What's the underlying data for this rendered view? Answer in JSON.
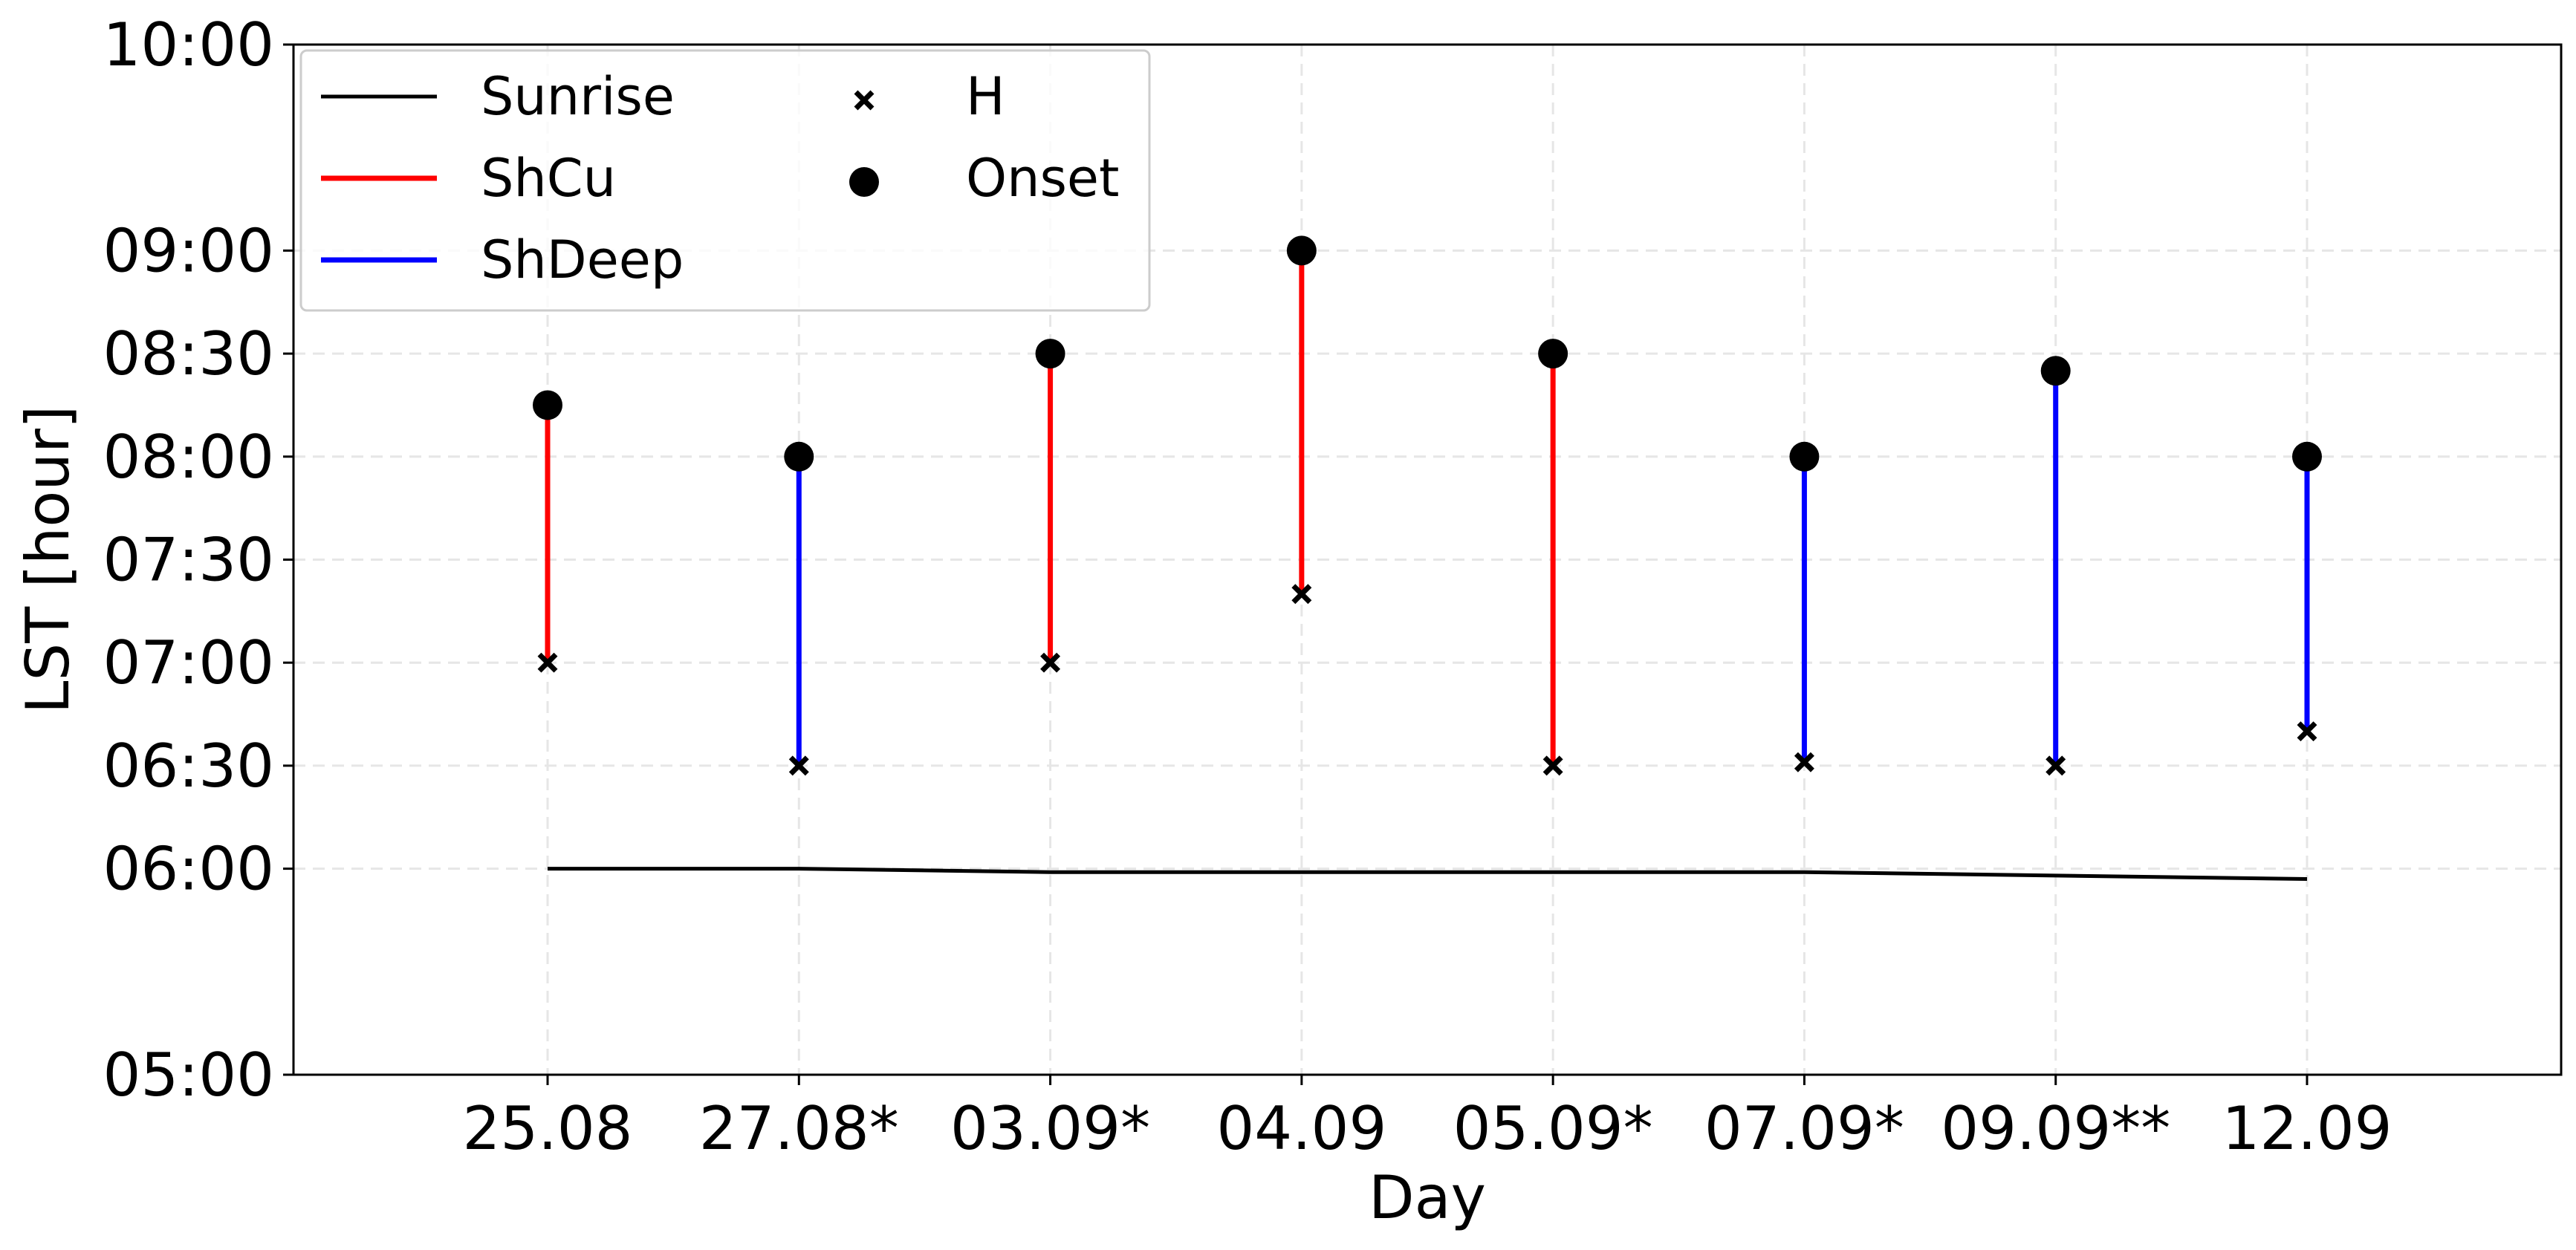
{
  "chart_data": {
    "type": "line",
    "categories": [
      "25.08",
      "27.08*",
      "03.09*",
      "04.09",
      "05.09*",
      "07.09*",
      "09.09**",
      "12.09"
    ],
    "xlabel": "Day",
    "ylabel": "LST [hour]",
    "ylim": [
      "05:00",
      "10:00"
    ],
    "yticks": [
      "05:00",
      "06:00",
      "06:30",
      "07:00",
      "07:30",
      "08:00",
      "08:30",
      "09:00",
      "10:00"
    ],
    "grid": true,
    "legend_position": "top-left",
    "legend": {
      "sunrise": "Sunrise",
      "shcu": "ShCu",
      "shdeep": "ShDeep",
      "h": "H",
      "onset": "Onset"
    },
    "colors": {
      "sunrise": "#000000",
      "shcu": "#ff0000",
      "shdeep": "#0000ff",
      "marker": "#000000",
      "grid": "#e6e6e6"
    },
    "series": [
      {
        "name": "Sunrise",
        "values": [
          "06:00",
          "06:00",
          "05:59",
          "05:59",
          "05:59",
          "05:59",
          "05:58",
          "05:57"
        ]
      },
      {
        "name": "H",
        "values": [
          "07:00",
          "06:30",
          "07:00",
          "07:20",
          "06:30",
          "06:31",
          "06:30",
          "06:40"
        ]
      },
      {
        "name": "Onset",
        "values": [
          "08:15",
          "08:00",
          "08:30",
          "09:00",
          "08:30",
          "08:00",
          "08:25",
          "08:00"
        ]
      }
    ],
    "regime": [
      "ShCu",
      "ShDeep",
      "ShCu",
      "ShCu",
      "ShCu",
      "ShDeep",
      "ShDeep",
      "ShDeep"
    ]
  }
}
